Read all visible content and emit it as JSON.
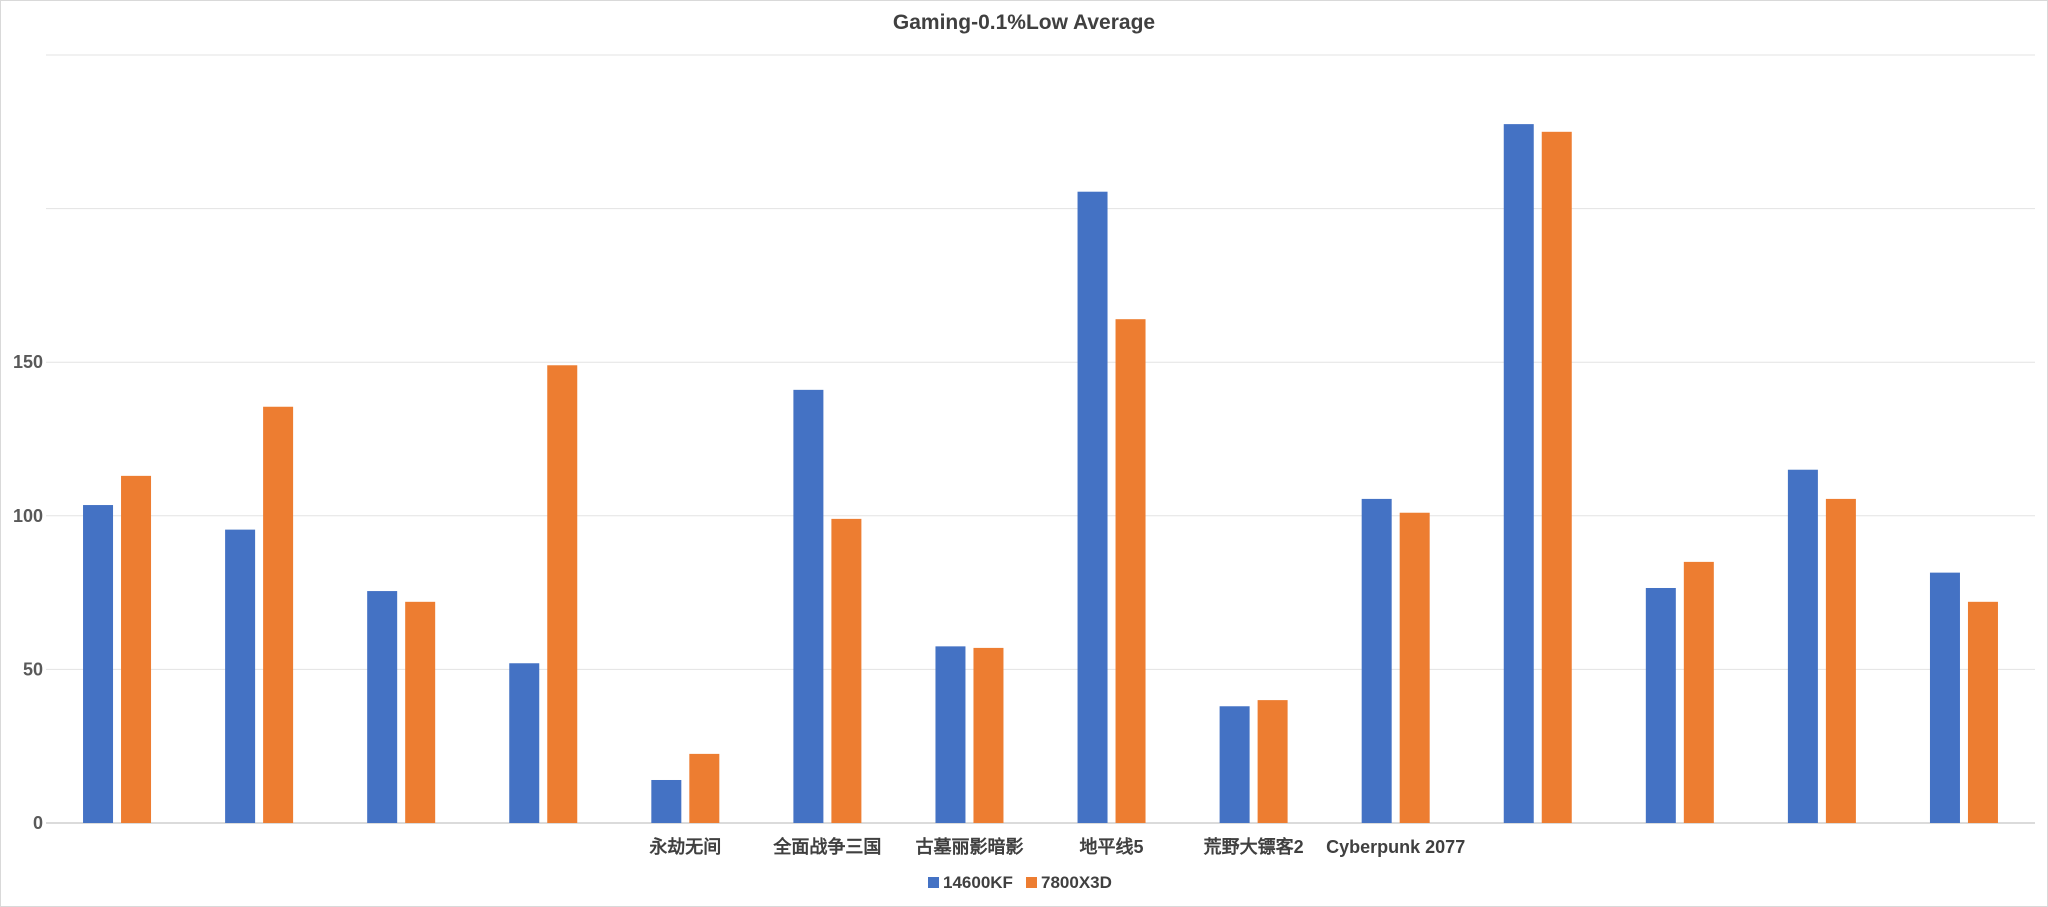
{
  "chart_data": {
    "type": "bar",
    "title": "Gaming-0.1%Low Average",
    "xlabel": "",
    "ylabel": "",
    "ylim": [
      0,
      250
    ],
    "yticks": [
      0,
      50,
      100,
      150
    ],
    "grid": true,
    "legend_position": "bottom",
    "categories": [
      "",
      "",
      "",
      "",
      "永劫无间",
      "全面战争三国",
      "古墓丽影暗影",
      "地平线5",
      "荒野大镖客2",
      "Cyberpunk 2077",
      "",
      "",
      "",
      ""
    ],
    "series": [
      {
        "name": "14600KF",
        "color": "#4472c4",
        "values": [
          103.5,
          95.5,
          75.5,
          52,
          14,
          141,
          57.5,
          205.5,
          38,
          105.5,
          227.5,
          76.5,
          115,
          81.5
        ]
      },
      {
        "name": "7800X3D",
        "color": "#ed7d31",
        "values": [
          113,
          135.5,
          72,
          149,
          22.5,
          99,
          57,
          164,
          40,
          101,
          225,
          85,
          105.5,
          72
        ]
      }
    ]
  }
}
